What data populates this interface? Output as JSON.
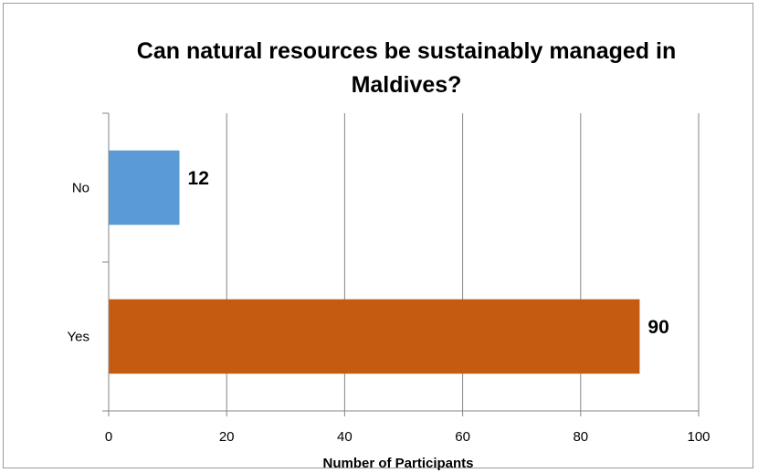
{
  "chart_data": {
    "type": "bar",
    "orientation": "horizontal",
    "title": "Can natural resources be sustainably managed in Maldives?",
    "categories": [
      "No",
      "Yes"
    ],
    "values": [
      12,
      90
    ],
    "data_labels": [
      "12",
      "90"
    ],
    "xlabel": "Number of Participants",
    "ylabel": "",
    "xlim": [
      0,
      100
    ],
    "x_ticks": [
      0,
      20,
      40,
      60,
      80,
      100
    ],
    "x_tick_labels": [
      "0",
      "20",
      "40",
      "60",
      "80",
      "100"
    ],
    "grid": "vertical",
    "legend": "none",
    "colors": [
      "#5b9bd5",
      "#c55a11"
    ]
  }
}
